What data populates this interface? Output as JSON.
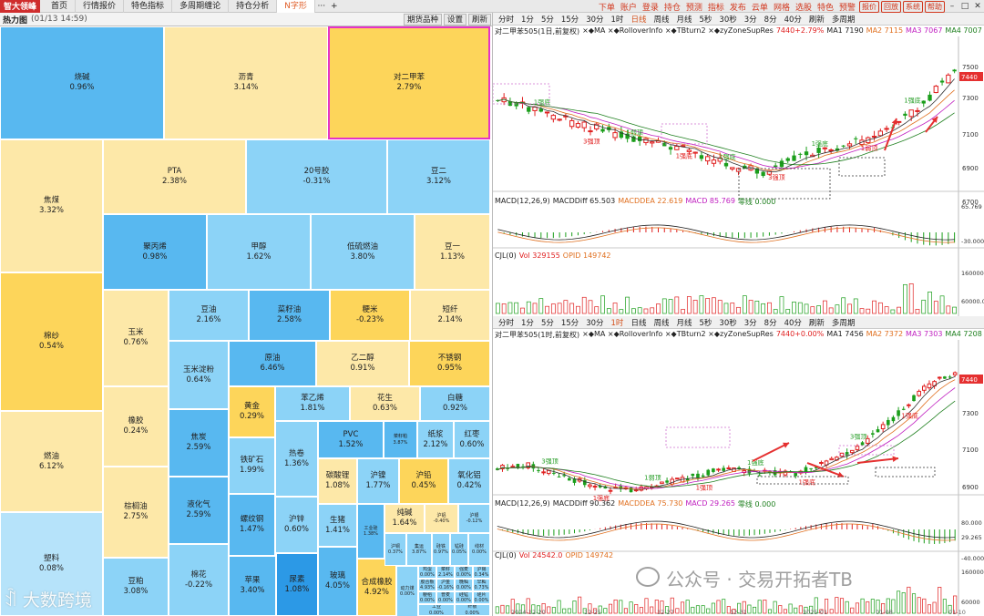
{
  "topbar": {
    "logo": "智大领峰",
    "tabs": [
      {
        "label": "首页"
      },
      {
        "label": "行情报价"
      },
      {
        "label": "特色指标"
      },
      {
        "label": "多周期缠论"
      },
      {
        "label": "持仓分析"
      },
      {
        "label": "N字形"
      }
    ],
    "more": "···",
    "add": "+",
    "right_links": [
      "下单",
      "账户",
      "登录",
      "持仓",
      "预测",
      "指标",
      "发布",
      "云单",
      "网格",
      "选股",
      "特色",
      "预警"
    ],
    "right_buttons": [
      "报价",
      "回放",
      "系统",
      "帮助"
    ]
  },
  "heatmap": {
    "title": "热力图",
    "date": "(01/13 14:59)",
    "buttons": [
      "期货品种",
      "设置",
      "刷新"
    ],
    "cells": [
      {
        "name": "烧碱",
        "pct": "0.96%",
        "color": "#58b8f0"
      },
      {
        "name": "沥青",
        "pct": "3.14%",
        "color": "#fde8a8"
      },
      {
        "name": "对二甲苯",
        "pct": "2.79%",
        "color": "#fdd55a"
      },
      {
        "name": "焦煤",
        "pct": "3.32%",
        "color": "#fde8a8"
      },
      {
        "name": "PTA",
        "pct": "2.38%",
        "color": "#fde8a8"
      },
      {
        "name": "20号胶",
        "pct": "-0.31%",
        "color": "#8cd3f7"
      },
      {
        "name": "豆二",
        "pct": "3.12%",
        "color": "#8cd3f7"
      },
      {
        "name": "聚丙烯",
        "pct": "0.98%",
        "color": "#58b8f0"
      },
      {
        "name": "甲醇",
        "pct": "1.62%",
        "color": "#8cd3f7"
      },
      {
        "name": "低硫燃油",
        "pct": "3.80%",
        "color": "#8cd3f7"
      },
      {
        "name": "豆一",
        "pct": "1.13%",
        "color": "#fde8a8"
      },
      {
        "name": "棉纱",
        "pct": "0.54%",
        "color": "#fdd55a"
      },
      {
        "name": "玉米",
        "pct": "0.76%",
        "color": "#fde8a8"
      },
      {
        "name": "豆油",
        "pct": "2.16%",
        "color": "#8cd3f7"
      },
      {
        "name": "菜籽油",
        "pct": "2.58%",
        "color": "#58b8f0"
      },
      {
        "name": "粳米",
        "pct": "-0.23%",
        "color": "#fdd55a"
      },
      {
        "name": "短纤",
        "pct": "2.14%",
        "color": "#fde8a8"
      },
      {
        "name": "玉米淀粉",
        "pct": "0.64%",
        "color": "#8cd3f7"
      },
      {
        "name": "原油",
        "pct": "6.46%",
        "color": "#58b8f0"
      },
      {
        "name": "乙二醇",
        "pct": "0.91%",
        "color": "#fde8a8"
      },
      {
        "name": "不锈钢",
        "pct": "0.95%",
        "color": "#fdd55a"
      },
      {
        "name": "橡胶",
        "pct": "0.24%",
        "color": "#fde8a8"
      },
      {
        "name": "黄金",
        "pct": "0.29%",
        "color": "#fdd55a"
      },
      {
        "name": "苯乙烯",
        "pct": "1.81%",
        "color": "#8cd3f7"
      },
      {
        "name": "花生",
        "pct": "0.63%",
        "color": "#fde8a8"
      },
      {
        "name": "白糖",
        "pct": "0.92%",
        "color": "#8cd3f7"
      },
      {
        "name": "燃油",
        "pct": "6.12%",
        "color": "#fde8a8"
      },
      {
        "name": "焦炭",
        "pct": "2.59%",
        "color": "#58b8f0"
      },
      {
        "name": "铁矿石",
        "pct": "1.99%",
        "color": "#8cd3f7"
      },
      {
        "name": "热卷",
        "pct": "1.36%",
        "color": "#8cd3f7"
      },
      {
        "name": "PVC",
        "pct": "1.52%",
        "color": "#58b8f0"
      },
      {
        "name": "菜籽粕",
        "pct": "3.87%",
        "color": "#58b8f0"
      },
      {
        "name": "纸浆",
        "pct": "2.12%",
        "color": "#8cd3f7"
      },
      {
        "name": "红枣",
        "pct": "0.60%",
        "color": "#8cd3f7"
      },
      {
        "name": "棕榈油",
        "pct": "2.75%",
        "color": "#fde8a8"
      },
      {
        "name": "碳酸锂",
        "pct": "1.08%",
        "color": "#fde8a8"
      },
      {
        "name": "沪镍",
        "pct": "1.77%",
        "color": "#8cd3f7"
      },
      {
        "name": "沪铅",
        "pct": "0.45%",
        "color": "#fdd55a"
      },
      {
        "name": "氧化铝",
        "pct": "0.42%",
        "color": "#8cd3f7"
      },
      {
        "name": "液化气",
        "pct": "2.59%",
        "color": "#58b8f0"
      },
      {
        "name": "螺纹钢",
        "pct": "1.47%",
        "color": "#58b8f0"
      },
      {
        "name": "沪锌",
        "pct": "0.60%",
        "color": "#8cd3f7"
      },
      {
        "name": "生猪",
        "pct": "1.41%",
        "color": "#8cd3f7"
      },
      {
        "name": "工业硅",
        "pct": "1.38%",
        "color": "#58b8f0"
      },
      {
        "name": "塑料",
        "pct": "0.08%",
        "color": "#b6e3fa"
      },
      {
        "name": "豆粕",
        "pct": "3.08%",
        "color": "#8cd3f7"
      },
      {
        "name": "棉花",
        "pct": "-0.22%",
        "color": "#8cd3f7"
      },
      {
        "name": "苹果",
        "pct": "3.40%",
        "color": "#58b8f0"
      },
      {
        "name": "尿素",
        "pct": "1.08%",
        "color": "#2c99e6"
      },
      {
        "name": "玻璃",
        "pct": "4.05%",
        "color": "#58b8f0"
      },
      {
        "name": "合成橡胶",
        "pct": "4.92%",
        "color": "#fdd55a"
      },
      {
        "name": "纯碱",
        "pct": "1.64%",
        "color": "#fde8a8"
      },
      {
        "name": "沪铝",
        "pct": "-0.40%",
        "color": "#fde8a8"
      },
      {
        "name": "沪银",
        "pct": "-0.12%",
        "color": "#8cd3f7"
      },
      {
        "name": "沪铜",
        "pct": "0.37%",
        "color": "#8cd3f7"
      },
      {
        "name": "集运",
        "pct": "3.87%",
        "color": "#8cd3f7"
      },
      {
        "name": "硅铁",
        "pct": "0.97%",
        "color": "#8cd3f7"
      },
      {
        "name": "锰硅",
        "pct": "0.05%",
        "color": "#8cd3f7"
      },
      {
        "name": "线材",
        "pct": "0.00%",
        "color": "#8cd3f7"
      },
      {
        "name": "动力煤",
        "pct": "0.00%",
        "color": "#8cd3f7"
      },
      {
        "name": "鸡蛋",
        "pct": "0.00%",
        "color": "#8cd3f7"
      },
      {
        "name": "菜籽",
        "pct": "2.14%",
        "color": "#8cd3f7"
      },
      {
        "name": "强麦",
        "pct": "0.00%",
        "color": "#8cd3f7"
      },
      {
        "name": "沪锡",
        "pct": "0.34%",
        "color": "#8cd3f7"
      },
      {
        "name": "胶合板",
        "pct": "4.93%",
        "color": "#8cd3f7"
      },
      {
        "name": "沪金",
        "pct": "-0.16%",
        "color": "#8cd3f7"
      },
      {
        "name": "晚籼",
        "pct": "0.00%",
        "color": "#8cd3f7"
      },
      {
        "name": "早籼",
        "pct": "0.73%",
        "color": "#8cd3f7"
      },
      {
        "name": "粳稻",
        "pct": "0.00%",
        "color": "#8cd3f7"
      },
      {
        "name": "普麦",
        "pct": "0.00%",
        "color": "#8cd3f7"
      },
      {
        "name": "硅锰",
        "pct": "0.00%",
        "color": "#8cd3f7"
      },
      {
        "name": "硅片",
        "pct": "0.00%",
        "color": "#8cd3f7"
      },
      {
        "name": "工业",
        "pct": "0.00%",
        "color": "#8cd3f7"
      },
      {
        "name": "纤板",
        "pct": "0.00%",
        "color": "#8cd3f7"
      },
      {
        "name": "棕榈",
        "pct": "0.00%",
        "color": "#8cd3f7"
      }
    ]
  },
  "panel_top": {
    "periods": [
      "分时",
      "1分",
      "5分",
      "15分",
      "30分",
      "1时",
      "日线",
      "周线",
      "月线",
      "5秒",
      "30秒",
      "3分",
      "8分",
      "40分",
      "刷新",
      "多周期"
    ],
    "active_period": "日线",
    "info": {
      "symbol": "对二甲苯505(1日,前复权)",
      "indicators": "×◆MA ×◆RolloverInfo ×◆TBturn2 ×◆zyZoneSupRes",
      "price": "7440+2.79%",
      "ma1": "MA1 7190",
      "ma2": "MA2 7115",
      "ma3": "MA3 7067",
      "ma4": "MA4 7007"
    },
    "y_ticks": [
      "7500",
      "7300",
      "7100",
      "6900",
      "6700"
    ],
    "price_tag": "7440",
    "macd_info": {
      "label": "MACD(12,26,9)",
      "diff": "MACDDiff 65.503",
      "dea": "MACDDEA 22.619",
      "macd": "MACD 85.769",
      "zero": "零线 0.000"
    },
    "macd_ticks": [
      "65.769",
      "-30.000"
    ],
    "vol_info": {
      "label": "CJL(0)",
      "vol": "Vol 329155",
      "opid": "OPID 149742"
    },
    "vol_ticks": [
      "160000",
      "60000.000"
    ],
    "x_labels": [
      "2024-10-30",
      "11-18",
      "11-28",
      "12",
      "12-23",
      "2025-01"
    ],
    "notes": [
      "1强底",
      "3强顶",
      "1弱顶",
      "1强底",
      "1强底",
      "3强顶",
      "1强底",
      "1弱顶",
      "1强底"
    ]
  },
  "panel_bottom": {
    "periods": [
      "分时",
      "1分",
      "5分",
      "15分",
      "30分",
      "1时",
      "日线",
      "周线",
      "月线",
      "5秒",
      "30秒",
      "3分",
      "8分",
      "40分",
      "刷新",
      "多周期"
    ],
    "active_period": "1时",
    "info": {
      "symbol": "对二甲苯505(1时,前复权)",
      "indicators": "×◆MA ×◆RolloverInfo ×◆TBturn2 ×◆zyZoneSupRes",
      "price": "7440+0.00%",
      "ma1": "MA1 7456",
      "ma2": "MA2 7372",
      "ma3": "MA3 7303",
      "ma4": "MA4 7208"
    },
    "y_ticks": [
      "7500",
      "7300",
      "7100",
      "6900"
    ],
    "price_tag": "7440",
    "macd_info": {
      "label": "MACD(12,26,9)",
      "diff": "MACDDiff 90.362",
      "dea": "MACDDEA 75.730",
      "macd": "MACD 29.265",
      "zero": "零线 0.000"
    },
    "macd_ticks": [
      "80.000",
      "29.265",
      "-40.000"
    ],
    "vol_info": {
      "label": "CJL(0)",
      "vol": "Vol 24542.0",
      "opid": "OPID 149742"
    },
    "vol_ticks": [
      "160000",
      "60000"
    ],
    "x_labels": [
      "2024-12-20",
      "12-25",
      "12-27",
      "12-31",
      "2025-01",
      "01-08",
      "01-10"
    ],
    "notes": [
      "3强顶",
      "1强底",
      "1弱顶",
      "1强顶",
      "1强底",
      "1强底",
      "3强顶",
      "1强底"
    ]
  },
  "watermarks": {
    "wechat": "公众号 · 交易开拓者TB",
    "brand": "大数跨境"
  }
}
